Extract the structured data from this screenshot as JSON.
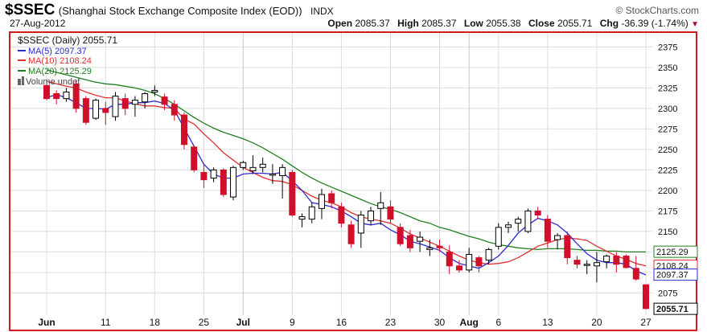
{
  "header": {
    "symbol": "$SSEC",
    "name": "(Shanghai Stock Exchange Composite Index (EOD))",
    "exchange": "INDX",
    "logo": "© StockCharts.com",
    "date": "27-Aug-2012",
    "open_label": "Open",
    "open": "2085.37",
    "high_label": "High",
    "high": "2085.37",
    "low_label": "Low",
    "low": "2055.38",
    "close_label": "Close",
    "close": "2055.71",
    "chg_label": "Chg",
    "chg": "-36.39 (-1.74%)",
    "chg_arrow": "▼"
  },
  "legend": {
    "main": "$SSEC (Daily) 2055.71",
    "ma5": "MA(5) 2097.37",
    "ma10": "MA(10) 2108.24",
    "ma20": "MA(20) 2125.29",
    "volume": "Volume undef"
  },
  "colors": {
    "up": "#000000",
    "down": "#d0102a",
    "ma5": "#2b2bd0",
    "ma10": "#e03030",
    "ma20": "#208020",
    "grid": "#dcdcdc",
    "frame": "#d21c1c"
  },
  "chart_data": {
    "type": "candlestick",
    "y_ticks": [
      2075,
      2100,
      2125,
      2150,
      2175,
      2200,
      2225,
      2250,
      2275,
      2300,
      2325,
      2350,
      2375
    ],
    "ylim": [
      2048,
      2392
    ],
    "x_ticks": [
      {
        "label": "Jun",
        "i": 0
      },
      {
        "label": "11",
        "i": 6
      },
      {
        "label": "18",
        "i": 11
      },
      {
        "label": "25",
        "i": 16
      },
      {
        "label": "Jul",
        "i": 20
      },
      {
        "label": "9",
        "i": 25
      },
      {
        "label": "16",
        "i": 30
      },
      {
        "label": "23",
        "i": 35
      },
      {
        "label": "30",
        "i": 40
      },
      {
        "label": "Aug",
        "i": 43
      },
      {
        "label": "6",
        "i": 46
      },
      {
        "label": "13",
        "i": 51
      },
      {
        "label": "20",
        "i": 56
      },
      {
        "label": "27",
        "i": 61
      }
    ],
    "value_tags": [
      {
        "text": "2125.29",
        "value": 2125.29,
        "color": "#208020"
      },
      {
        "text": "2108.24",
        "value": 2108.24,
        "color": "#e03030"
      },
      {
        "text": "2097.37",
        "value": 2097.37,
        "color": "#2b2bd0"
      },
      {
        "text": "2055.71",
        "value": 2055.71,
        "color": "#000000"
      }
    ],
    "candles": [
      [
        2328,
        2330,
        2310,
        2312
      ],
      [
        2318,
        2322,
        2305,
        2312
      ],
      [
        2312,
        2325,
        2308,
        2320
      ],
      [
        2330,
        2335,
        2295,
        2300
      ],
      [
        2312,
        2315,
        2280,
        2283
      ],
      [
        2288,
        2312,
        2286,
        2310
      ],
      [
        2300,
        2308,
        2280,
        2295
      ],
      [
        2290,
        2320,
        2285,
        2315
      ],
      [
        2312,
        2318,
        2292,
        2300
      ],
      [
        2305,
        2315,
        2290,
        2310
      ],
      [
        2308,
        2320,
        2300,
        2318
      ],
      [
        2320,
        2328,
        2315,
        2322
      ],
      [
        2314,
        2318,
        2298,
        2305
      ],
      [
        2305,
        2310,
        2285,
        2292
      ],
      [
        2292,
        2295,
        2250,
        2256
      ],
      [
        2253,
        2255,
        2222,
        2225
      ],
      [
        2222,
        2232,
        2203,
        2213
      ],
      [
        2215,
        2228,
        2210,
        2225
      ],
      [
        2225,
        2227,
        2192,
        2195
      ],
      [
        2192,
        2230,
        2188,
        2228
      ],
      [
        2228,
        2236,
        2225,
        2234
      ],
      [
        2224,
        2243,
        2220,
        2228
      ],
      [
        2228,
        2240,
        2222,
        2232
      ],
      [
        2220,
        2232,
        2208,
        2220
      ],
      [
        2218,
        2232,
        2190,
        2228
      ],
      [
        2222,
        2225,
        2168,
        2170
      ],
      [
        2165,
        2172,
        2155,
        2168
      ],
      [
        2165,
        2185,
        2160,
        2180
      ],
      [
        2178,
        2202,
        2165,
        2195
      ],
      [
        2196,
        2200,
        2178,
        2185
      ],
      [
        2180,
        2185,
        2155,
        2160
      ],
      [
        2158,
        2163,
        2130,
        2135
      ],
      [
        2148,
        2175,
        2130,
        2170
      ],
      [
        2163,
        2180,
        2158,
        2175
      ],
      [
        2178,
        2198,
        2158,
        2185
      ],
      [
        2180,
        2188,
        2160,
        2165
      ],
      [
        2155,
        2160,
        2132,
        2135
      ],
      [
        2145,
        2152,
        2125,
        2130
      ],
      [
        2138,
        2150,
        2125,
        2143
      ],
      [
        2128,
        2140,
        2120,
        2130
      ],
      [
        2132,
        2140,
        2125,
        2130
      ],
      [
        2125,
        2133,
        2098,
        2108
      ],
      [
        2108,
        2115,
        2100,
        2103
      ],
      [
        2103,
        2130,
        2100,
        2122
      ],
      [
        2118,
        2120,
        2100,
        2108
      ],
      [
        2115,
        2130,
        2110,
        2128
      ],
      [
        2132,
        2160,
        2128,
        2155
      ],
      [
        2155,
        2162,
        2148,
        2158
      ],
      [
        2160,
        2168,
        2150,
        2165
      ],
      [
        2150,
        2178,
        2148,
        2175
      ],
      [
        2175,
        2180,
        2165,
        2170
      ],
      [
        2165,
        2170,
        2130,
        2138
      ],
      [
        2140,
        2148,
        2128,
        2145
      ],
      [
        2145,
        2150,
        2110,
        2118
      ],
      [
        2115,
        2120,
        2105,
        2110
      ],
      [
        2110,
        2115,
        2098,
        2110
      ],
      [
        2108,
        2125,
        2088,
        2112
      ],
      [
        2113,
        2122,
        2105,
        2120
      ],
      [
        2120,
        2125,
        2100,
        2110
      ],
      [
        2120,
        2122,
        2105,
        2106
      ],
      [
        2105,
        2120,
        2090,
        2092
      ],
      [
        2085,
        2085,
        2055,
        2056
      ]
    ],
    "ma5": [
      2313,
      2317,
      2313,
      2307,
      2300,
      2300,
      2299,
      2305,
      2305,
      2307,
      2307,
      2309,
      2306,
      2298,
      2276,
      2254,
      2232,
      2220,
      2215,
      2215,
      2220,
      2221,
      2221,
      2220,
      2222,
      2212,
      2200,
      2185,
      2183,
      2180,
      2175,
      2168,
      2160,
      2158,
      2160,
      2152,
      2146,
      2138,
      2135,
      2131,
      2127,
      2118,
      2111,
      2108,
      2105,
      2112,
      2120,
      2133,
      2148,
      2158,
      2166,
      2163,
      2158,
      2148,
      2135,
      2123,
      2115,
      2112,
      2112,
      2110,
      2102,
      2097
    ],
    "ma10": [
      2333,
      2330,
      2327,
      2325,
      2320,
      2316,
      2313,
      2313,
      2309,
      2306,
      2303,
      2303,
      2301,
      2300,
      2287,
      2281,
      2269,
      2258,
      2246,
      2237,
      2228,
      2222,
      2216,
      2212,
      2211,
      2207,
      2200,
      2193,
      2188,
      2185,
      2180,
      2173,
      2168,
      2165,
      2163,
      2160,
      2154,
      2147,
      2142,
      2137,
      2132,
      2126,
      2120,
      2115,
      2112,
      2110,
      2111,
      2113,
      2118,
      2125,
      2132,
      2136,
      2140,
      2142,
      2141,
      2139,
      2132,
      2126,
      2120,
      2116,
      2111,
      2108
    ],
    "ma20": [
      2347,
      2344,
      2341,
      2338,
      2335,
      2332,
      2330,
      2329,
      2327,
      2325,
      2322,
      2318,
      2312,
      2305,
      2297,
      2289,
      2282,
      2276,
      2271,
      2267,
      2263,
      2258,
      2252,
      2245,
      2238,
      2230,
      2222,
      2215,
      2209,
      2204,
      2199,
      2194,
      2189,
      2184,
      2180,
      2177,
      2173,
      2168,
      2163,
      2160,
      2155,
      2152,
      2148,
      2144,
      2141,
      2137,
      2134,
      2132,
      2130,
      2129,
      2128,
      2129,
      2129,
      2129,
      2128,
      2127,
      2127,
      2126,
      2126,
      2125,
      2125,
      2125
    ]
  }
}
